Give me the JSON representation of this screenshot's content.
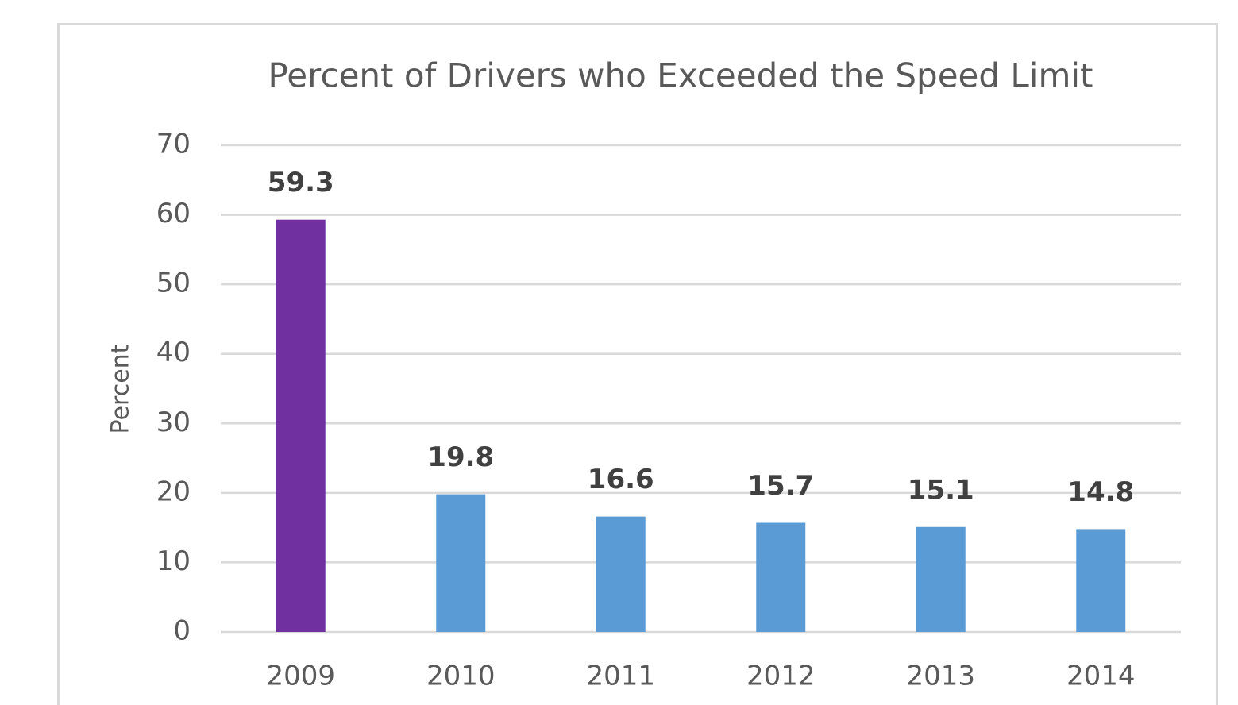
{
  "chart_data": {
    "type": "bar",
    "title": "Percent of Drivers who Exceeded the Speed Limit",
    "y_label": "Percent",
    "categories": [
      "2009",
      "2010",
      "2011",
      "2012",
      "2013",
      "2014"
    ],
    "values": [
      59.3,
      19.8,
      16.6,
      15.7,
      15.1,
      14.8
    ],
    "colors": [
      "#7030a0",
      "#5b9bd5",
      "#5b9bd5",
      "#5b9bd5",
      "#5b9bd5",
      "#5b9bd5"
    ],
    "ylim": [
      0,
      70
    ],
    "yticks": [
      0,
      10,
      20,
      30,
      40,
      50,
      60,
      70
    ],
    "grid": true
  }
}
